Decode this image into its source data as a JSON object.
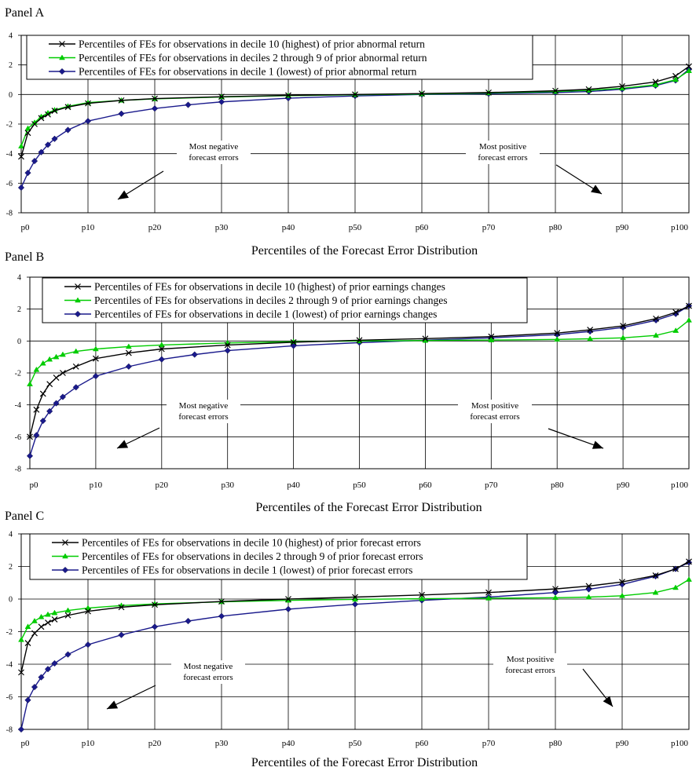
{
  "chart_data": [
    {
      "type": "line",
      "title": "Panel A",
      "xlabel": "Percentiles of the Forecast Error Distribution",
      "ylabel": "",
      "ylim": [
        -8,
        4
      ],
      "yticks": [
        4,
        2,
        0,
        -2,
        -4,
        -6,
        -8
      ],
      "xlim": [
        0,
        100
      ],
      "xticks": [
        "p0",
        "p10",
        "p20",
        "p30",
        "p40",
        "p50",
        "p60",
        "p70",
        "p80",
        "p90",
        "p100"
      ],
      "grid": true,
      "legend": "top-left",
      "annotations": [
        {
          "lines": [
            "Most negative",
            "forecast errors"
          ],
          "arrow": "down-left"
        },
        {
          "lines": [
            "Most positive",
            "forecast errors"
          ],
          "arrow": "down-right"
        }
      ],
      "series": [
        {
          "name": "Percentiles of FEs for observations in decile 10 (highest) of prior abnormal return",
          "color": "#000000",
          "marker": "x",
          "points": [
            [
              0,
              -4.2
            ],
            [
              1,
              -2.6
            ],
            [
              2,
              -2.0
            ],
            [
              3,
              -1.6
            ],
            [
              4,
              -1.35
            ],
            [
              5,
              -1.1
            ],
            [
              7,
              -0.85
            ],
            [
              10,
              -0.6
            ],
            [
              15,
              -0.4
            ],
            [
              20,
              -0.28
            ],
            [
              30,
              -0.15
            ],
            [
              40,
              -0.06
            ],
            [
              50,
              0.0
            ],
            [
              60,
              0.06
            ],
            [
              70,
              0.13
            ],
            [
              80,
              0.25
            ],
            [
              85,
              0.35
            ],
            [
              90,
              0.55
            ],
            [
              95,
              0.85
            ],
            [
              98,
              1.25
            ],
            [
              100,
              1.9
            ]
          ]
        },
        {
          "name": "Percentiles of FEs for observations in deciles 2 through 9 of prior abnormal return",
          "color": "#00cc00",
          "marker": "triangle",
          "points": [
            [
              0,
              -3.5
            ],
            [
              1,
              -2.3
            ],
            [
              2,
              -1.9
            ],
            [
              3,
              -1.5
            ],
            [
              4,
              -1.25
            ],
            [
              5,
              -1.05
            ],
            [
              7,
              -0.8
            ],
            [
              10,
              -0.55
            ],
            [
              15,
              -0.4
            ],
            [
              20,
              -0.3
            ],
            [
              30,
              -0.17
            ],
            [
              40,
              -0.08
            ],
            [
              50,
              -0.02
            ],
            [
              60,
              0.03
            ],
            [
              70,
              0.1
            ],
            [
              80,
              0.2
            ],
            [
              85,
              0.28
            ],
            [
              90,
              0.42
            ],
            [
              95,
              0.65
            ],
            [
              98,
              1.0
            ],
            [
              100,
              1.6
            ]
          ]
        },
        {
          "name": "Percentiles of FEs for observations in decile 1 (lowest) of prior abnormal return",
          "color": "#1a1a8c",
          "marker": "diamond",
          "points": [
            [
              0,
              -6.3
            ],
            [
              1,
              -5.3
            ],
            [
              2,
              -4.5
            ],
            [
              3,
              -3.9
            ],
            [
              4,
              -3.4
            ],
            [
              5,
              -3.0
            ],
            [
              7,
              -2.4
            ],
            [
              10,
              -1.8
            ],
            [
              15,
              -1.3
            ],
            [
              20,
              -0.95
            ],
            [
              25,
              -0.7
            ],
            [
              30,
              -0.5
            ],
            [
              40,
              -0.25
            ],
            [
              50,
              -0.1
            ],
            [
              60,
              0.0
            ],
            [
              70,
              0.05
            ],
            [
              80,
              0.13
            ],
            [
              85,
              0.2
            ],
            [
              90,
              0.35
            ],
            [
              95,
              0.6
            ],
            [
              98,
              0.95
            ],
            [
              100,
              1.7
            ]
          ]
        }
      ]
    },
    {
      "type": "line",
      "title": "Panel B",
      "xlabel": "Percentiles of the Forecast Error Distribution",
      "ylabel": "",
      "ylim": [
        -8,
        4
      ],
      "yticks": [
        4,
        2,
        0,
        -2,
        -4,
        -6,
        -8
      ],
      "xlim": [
        0,
        100
      ],
      "xticks": [
        "p0",
        "p10",
        "p20",
        "p30",
        "p40",
        "p50",
        "p60",
        "p70",
        "p80",
        "p90",
        "p100"
      ],
      "grid": true,
      "legend": "top-left",
      "annotations": [
        {
          "lines": [
            "Most negative",
            "forecast errors"
          ],
          "arrow": "down-left"
        },
        {
          "lines": [
            "Most positive",
            "forecast errors"
          ],
          "arrow": "down-right"
        }
      ],
      "series": [
        {
          "name": "Percentiles of FEs for observations in decile 10 (highest) of prior earnings changes",
          "color": "#000000",
          "marker": "x",
          "points": [
            [
              0,
              -6.0
            ],
            [
              1,
              -4.3
            ],
            [
              2,
              -3.3
            ],
            [
              3,
              -2.7
            ],
            [
              4,
              -2.3
            ],
            [
              5,
              -2.0
            ],
            [
              7,
              -1.6
            ],
            [
              10,
              -1.1
            ],
            [
              15,
              -0.75
            ],
            [
              20,
              -0.5
            ],
            [
              30,
              -0.25
            ],
            [
              40,
              -0.08
            ],
            [
              50,
              0.05
            ],
            [
              60,
              0.15
            ],
            [
              70,
              0.28
            ],
            [
              80,
              0.5
            ],
            [
              85,
              0.7
            ],
            [
              90,
              0.95
            ],
            [
              95,
              1.4
            ],
            [
              98,
              1.8
            ],
            [
              100,
              2.2
            ]
          ]
        },
        {
          "name": "Percentiles of FEs for observations in deciles 2 through 9 of prior earnings changes",
          "color": "#00cc00",
          "marker": "triangle",
          "points": [
            [
              0,
              -2.7
            ],
            [
              1,
              -1.8
            ],
            [
              2,
              -1.4
            ],
            [
              3,
              -1.15
            ],
            [
              4,
              -1.0
            ],
            [
              5,
              -0.85
            ],
            [
              7,
              -0.65
            ],
            [
              10,
              -0.5
            ],
            [
              15,
              -0.35
            ],
            [
              20,
              -0.25
            ],
            [
              30,
              -0.12
            ],
            [
              40,
              -0.04
            ],
            [
              50,
              0.0
            ],
            [
              60,
              0.03
            ],
            [
              70,
              0.06
            ],
            [
              80,
              0.1
            ],
            [
              85,
              0.14
            ],
            [
              90,
              0.2
            ],
            [
              95,
              0.35
            ],
            [
              98,
              0.65
            ],
            [
              100,
              1.3
            ]
          ]
        },
        {
          "name": "Percentiles of FEs for observations in decile 1 (lowest) of prior earnings changes",
          "color": "#1a1a8c",
          "marker": "diamond",
          "points": [
            [
              0,
              -7.2
            ],
            [
              1,
              -5.9
            ],
            [
              2,
              -5.0
            ],
            [
              3,
              -4.4
            ],
            [
              4,
              -3.9
            ],
            [
              5,
              -3.5
            ],
            [
              7,
              -2.9
            ],
            [
              10,
              -2.2
            ],
            [
              15,
              -1.6
            ],
            [
              20,
              -1.15
            ],
            [
              25,
              -0.85
            ],
            [
              30,
              -0.6
            ],
            [
              40,
              -0.3
            ],
            [
              50,
              -0.1
            ],
            [
              60,
              0.05
            ],
            [
              70,
              0.2
            ],
            [
              80,
              0.4
            ],
            [
              85,
              0.6
            ],
            [
              90,
              0.85
            ],
            [
              95,
              1.3
            ],
            [
              98,
              1.7
            ],
            [
              100,
              2.2
            ]
          ]
        }
      ]
    },
    {
      "type": "line",
      "title": "Panel C",
      "xlabel": "Percentiles of the Forecast Error Distribution",
      "ylabel": "",
      "ylim": [
        -8,
        4
      ],
      "yticks": [
        4,
        2,
        0,
        -2,
        -4,
        -6,
        -8
      ],
      "xlim": [
        0,
        100
      ],
      "xticks": [
        "p0",
        "p10",
        "p20",
        "p30",
        "p40",
        "p50",
        "p60",
        "p70",
        "p80",
        "p90",
        "p100"
      ],
      "grid": true,
      "legend": "top-left",
      "annotations": [
        {
          "lines": [
            "Most negative",
            "forecast errors"
          ],
          "arrow": "down-left"
        },
        {
          "lines": [
            "Most positive",
            "forecast errors"
          ],
          "arrow": "down-right"
        }
      ],
      "series": [
        {
          "name": "Percentiles of FEs for observations in decile 10 (highest) of prior forecast errors",
          "color": "#000000",
          "marker": "x",
          "points": [
            [
              0,
              -4.5
            ],
            [
              1,
              -2.7
            ],
            [
              2,
              -2.1
            ],
            [
              3,
              -1.7
            ],
            [
              4,
              -1.45
            ],
            [
              5,
              -1.25
            ],
            [
              7,
              -1.0
            ],
            [
              10,
              -0.75
            ],
            [
              15,
              -0.5
            ],
            [
              20,
              -0.35
            ],
            [
              30,
              -0.15
            ],
            [
              40,
              0.0
            ],
            [
              50,
              0.12
            ],
            [
              60,
              0.25
            ],
            [
              70,
              0.4
            ],
            [
              80,
              0.62
            ],
            [
              85,
              0.8
            ],
            [
              90,
              1.05
            ],
            [
              95,
              1.45
            ],
            [
              98,
              1.85
            ],
            [
              100,
              2.3
            ]
          ]
        },
        {
          "name": "Percentiles of FEs for observations in deciles 2 through 9 of prior forecast errors",
          "color": "#00cc00",
          "marker": "triangle",
          "points": [
            [
              0,
              -2.5
            ],
            [
              1,
              -1.7
            ],
            [
              2,
              -1.35
            ],
            [
              3,
              -1.1
            ],
            [
              4,
              -0.95
            ],
            [
              5,
              -0.85
            ],
            [
              7,
              -0.7
            ],
            [
              10,
              -0.55
            ],
            [
              15,
              -0.4
            ],
            [
              20,
              -0.3
            ],
            [
              30,
              -0.17
            ],
            [
              40,
              -0.08
            ],
            [
              50,
              -0.02
            ],
            [
              60,
              0.02
            ],
            [
              70,
              0.05
            ],
            [
              80,
              0.08
            ],
            [
              85,
              0.12
            ],
            [
              90,
              0.2
            ],
            [
              95,
              0.4
            ],
            [
              98,
              0.7
            ],
            [
              100,
              1.2
            ]
          ]
        },
        {
          "name": "Percentiles of FEs for observations in decile 1 (lowest) of prior forecast errors",
          "color": "#1a1a8c",
          "marker": "diamond",
          "points": [
            [
              0,
              -8.0
            ],
            [
              1,
              -6.2
            ],
            [
              2,
              -5.4
            ],
            [
              3,
              -4.8
            ],
            [
              4,
              -4.3
            ],
            [
              5,
              -3.95
            ],
            [
              7,
              -3.4
            ],
            [
              10,
              -2.8
            ],
            [
              15,
              -2.2
            ],
            [
              20,
              -1.7
            ],
            [
              25,
              -1.35
            ],
            [
              30,
              -1.05
            ],
            [
              40,
              -0.62
            ],
            [
              50,
              -0.32
            ],
            [
              60,
              -0.08
            ],
            [
              70,
              0.12
            ],
            [
              80,
              0.4
            ],
            [
              85,
              0.6
            ],
            [
              90,
              0.9
            ],
            [
              95,
              1.4
            ],
            [
              98,
              1.85
            ],
            [
              100,
              2.25
            ]
          ]
        }
      ]
    }
  ]
}
